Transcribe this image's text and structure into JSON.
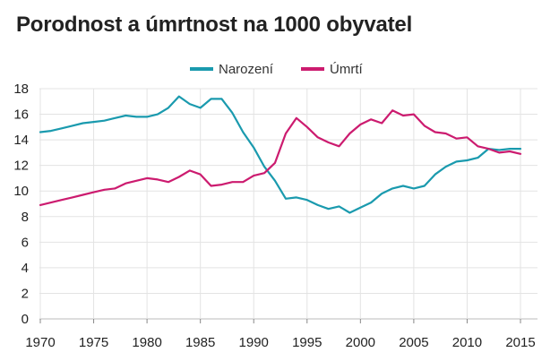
{
  "chart_data": {
    "type": "line",
    "title": "Porodnost a úmrtnost na 1000 obyvatel",
    "xlabel": "",
    "ylabel": "",
    "xlim": [
      1970,
      2016
    ],
    "ylim": [
      0,
      18
    ],
    "x_ticks": [
      1970,
      1975,
      1980,
      1985,
      1990,
      1995,
      2000,
      2005,
      2010,
      2015
    ],
    "y_ticks": [
      0,
      2,
      4,
      6,
      8,
      10,
      12,
      14,
      16,
      18
    ],
    "grid": true,
    "legend_position": "top-center",
    "x": [
      1970,
      1971,
      1972,
      1973,
      1974,
      1975,
      1976,
      1977,
      1978,
      1979,
      1980,
      1981,
      1982,
      1983,
      1984,
      1985,
      1986,
      1987,
      1988,
      1989,
      1990,
      1991,
      1992,
      1993,
      1994,
      1995,
      1996,
      1997,
      1998,
      1999,
      2000,
      2001,
      2002,
      2003,
      2004,
      2005,
      2006,
      2007,
      2008,
      2009,
      2010,
      2011,
      2012,
      2013,
      2014,
      2015
    ],
    "series": [
      {
        "name": "Narození",
        "color": "#1a9aae",
        "values": [
          14.6,
          14.7,
          14.9,
          15.1,
          15.3,
          15.4,
          15.5,
          15.7,
          15.9,
          15.8,
          15.8,
          16.0,
          16.5,
          17.4,
          16.8,
          16.5,
          17.2,
          17.2,
          16.1,
          14.6,
          13.4,
          11.9,
          10.8,
          9.4,
          9.5,
          9.3,
          8.9,
          8.6,
          8.8,
          8.3,
          8.7,
          9.1,
          9.8,
          10.2,
          10.4,
          10.2,
          10.4,
          11.3,
          11.9,
          12.3,
          12.4,
          12.6,
          13.3,
          13.2,
          13.3,
          13.3
        ]
      },
      {
        "name": "Úmrtí",
        "color": "#cc1b6f",
        "values": [
          8.9,
          9.1,
          9.3,
          9.5,
          9.7,
          9.9,
          10.1,
          10.2,
          10.6,
          10.8,
          11.0,
          10.9,
          10.7,
          11.1,
          11.6,
          11.3,
          10.4,
          10.5,
          10.7,
          10.7,
          11.2,
          11.4,
          12.2,
          14.5,
          15.7,
          15.0,
          14.2,
          13.8,
          13.5,
          14.5,
          15.2,
          15.6,
          15.3,
          16.3,
          15.9,
          16.0,
          15.1,
          14.6,
          14.5,
          14.1,
          14.2,
          13.5,
          13.3,
          13.0,
          13.1,
          12.9
        ]
      }
    ]
  }
}
